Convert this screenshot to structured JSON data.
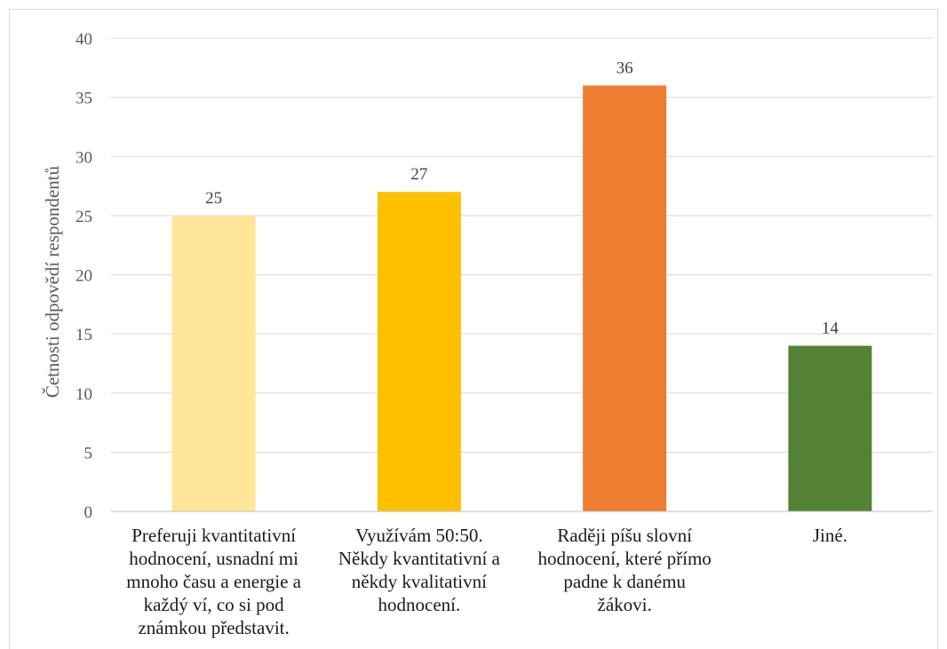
{
  "chart_data": {
    "type": "bar",
    "categories": [
      "Preferuji kvantitativní hodnocení, usnadní mi mnoho času a energie a každý ví, co si pod známkou představit.",
      "Využívám 50:50. Někdy kvantitativní a někdy kvalitativní hodnocení.",
      "Raději píšu slovní hodnocení, které přímo padne k danému žákovi.",
      "Jiné."
    ],
    "category_lines": [
      [
        "Preferuji kvantitativní",
        "hodnocení, usnadní mi",
        "mnoho času a energie a",
        "každý ví, co si pod",
        "známkou představit."
      ],
      [
        "Využívám 50:50.",
        "Někdy kvantitativní a",
        "někdy kvalitativní",
        "hodnocení."
      ],
      [
        "Raději píšu slovní",
        "hodnocení, které přímo",
        "padne k danému",
        "žákovi."
      ],
      [
        "Jiné."
      ]
    ],
    "values": [
      25,
      27,
      36,
      14
    ],
    "data_labels": [
      "25",
      "27",
      "36",
      "14"
    ],
    "colors": [
      "#ffe699",
      "#ffc000",
      "#ed7d31",
      "#548235"
    ],
    "ylabel": "Četnosti odpovědí respondentů",
    "xlabel": "",
    "ylim": [
      0,
      40
    ],
    "yticks": [
      0,
      5,
      10,
      15,
      20,
      25,
      30,
      35,
      40
    ],
    "grid": true,
    "gridline_color": "#d9d9d9",
    "axis_color": "#bfbfbf"
  }
}
